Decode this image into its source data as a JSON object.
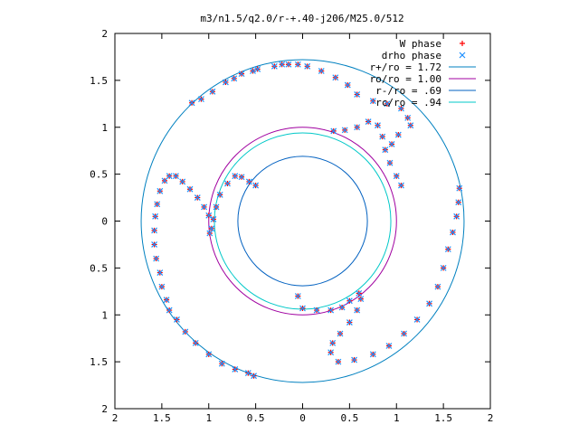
{
  "chart_data": {
    "type": "scatter",
    "title": "m3/n1.5/q2.0/r-+.40-j206/M25.0/512",
    "xlim": [
      -2,
      2
    ],
    "ylim": [
      -2,
      2
    ],
    "x_ticks": [
      -2,
      -1.5,
      -1,
      -0.5,
      0,
      0.5,
      1,
      1.5,
      2
    ],
    "y_ticks": [
      -2,
      -1.5,
      -1,
      -0.5,
      0,
      0.5,
      1,
      1.5,
      2
    ],
    "x_tick_labels": [
      "2",
      "1.5",
      "1",
      "0.5",
      "0",
      "0.5",
      "1",
      "1.5",
      "2"
    ],
    "y_tick_labels": [
      "2",
      "1.5",
      "1",
      "0.5",
      "0",
      "0.5",
      "1",
      "1.5",
      "2"
    ],
    "grid": false,
    "legend_position": "top-right",
    "series": [
      {
        "name": "W phase",
        "marker": "+",
        "color": "#ff0000",
        "points": [
          [
            -0.99,
            -0.13
          ],
          [
            -0.97,
            -0.08
          ],
          [
            -1.0,
            0.06
          ],
          [
            -1.05,
            0.15
          ],
          [
            -1.12,
            0.25
          ],
          [
            -1.2,
            0.34
          ],
          [
            -1.28,
            0.42
          ],
          [
            -1.35,
            0.48
          ],
          [
            -1.42,
            0.48
          ],
          [
            -1.47,
            0.43
          ],
          [
            -1.52,
            0.32
          ],
          [
            -1.55,
            0.18
          ],
          [
            -1.57,
            0.05
          ],
          [
            -1.58,
            -0.1
          ],
          [
            -1.58,
            -0.25
          ],
          [
            -1.56,
            -0.4
          ],
          [
            -1.52,
            -0.55
          ],
          [
            -1.5,
            -0.7
          ],
          [
            -1.45,
            -0.84
          ],
          [
            -1.42,
            -0.95
          ],
          [
            -1.34,
            -1.05
          ],
          [
            -1.25,
            -1.18
          ],
          [
            -1.14,
            -1.3
          ],
          [
            -1.0,
            -1.42
          ],
          [
            -0.86,
            -1.52
          ],
          [
            -0.72,
            -1.58
          ],
          [
            -0.58,
            -1.62
          ],
          [
            -0.52,
            -1.65
          ],
          [
            -0.95,
            0.02
          ],
          [
            -0.92,
            0.15
          ],
          [
            -0.88,
            0.28
          ],
          [
            -0.8,
            0.4
          ],
          [
            -0.72,
            0.48
          ],
          [
            -0.65,
            0.47
          ],
          [
            -0.57,
            0.42
          ],
          [
            -0.5,
            0.38
          ],
          [
            0.33,
            0.96
          ],
          [
            0.45,
            0.97
          ],
          [
            0.58,
            1.0
          ],
          [
            0.7,
            1.06
          ],
          [
            0.8,
            1.02
          ],
          [
            0.85,
            0.9
          ],
          [
            0.88,
            0.76
          ],
          [
            0.93,
            0.62
          ],
          [
            1.0,
            0.48
          ],
          [
            1.05,
            0.38
          ],
          [
            1.15,
            1.02
          ],
          [
            1.02,
            0.92
          ],
          [
            0.95,
            0.82
          ],
          [
            0.75,
            1.28
          ],
          [
            0.9,
            1.25
          ],
          [
            1.05,
            1.2
          ],
          [
            1.12,
            1.1
          ],
          [
            -0.05,
            1.67
          ],
          [
            -0.15,
            1.67
          ],
          [
            -0.3,
            1.65
          ],
          [
            -0.48,
            1.62
          ],
          [
            -0.65,
            1.57
          ],
          [
            -0.82,
            1.48
          ],
          [
            -0.96,
            1.38
          ],
          [
            -1.08,
            1.3
          ],
          [
            -1.18,
            1.26
          ],
          [
            0.05,
            1.65
          ],
          [
            0.2,
            1.6
          ],
          [
            0.35,
            1.53
          ],
          [
            0.48,
            1.45
          ],
          [
            0.58,
            1.35
          ],
          [
            1.67,
            0.35
          ],
          [
            1.66,
            0.2
          ],
          [
            1.64,
            0.05
          ],
          [
            1.6,
            -0.12
          ],
          [
            1.55,
            -0.3
          ],
          [
            1.5,
            -0.5
          ],
          [
            1.44,
            -0.7
          ],
          [
            1.35,
            -0.88
          ],
          [
            1.22,
            -1.05
          ],
          [
            1.08,
            -1.2
          ],
          [
            0.92,
            -1.33
          ],
          [
            0.75,
            -1.42
          ],
          [
            0.55,
            -1.48
          ],
          [
            0.38,
            -1.5
          ],
          [
            0.6,
            -0.77
          ],
          [
            0.62,
            -0.83
          ],
          [
            0.58,
            -0.95
          ],
          [
            0.5,
            -1.08
          ],
          [
            0.4,
            -1.2
          ],
          [
            0.32,
            -1.3
          ],
          [
            0.3,
            -1.4
          ],
          [
            0.5,
            -0.85
          ],
          [
            0.42,
            -0.92
          ],
          [
            0.3,
            -0.95
          ],
          [
            0.15,
            -0.95
          ],
          [
            0.0,
            -0.93
          ],
          [
            -0.05,
            -0.8
          ],
          [
            -0.22,
            1.67
          ],
          [
            -0.53,
            1.6
          ],
          [
            -0.73,
            1.52
          ]
        ]
      },
      {
        "name": "drho phase",
        "marker": "x",
        "color": "#1e90ff",
        "points": [
          [
            -0.99,
            -0.13
          ],
          [
            -0.97,
            -0.08
          ],
          [
            -1.0,
            0.06
          ],
          [
            -1.05,
            0.15
          ],
          [
            -1.12,
            0.25
          ],
          [
            -1.2,
            0.34
          ],
          [
            -1.28,
            0.42
          ],
          [
            -1.35,
            0.48
          ],
          [
            -1.42,
            0.48
          ],
          [
            -1.47,
            0.43
          ],
          [
            -1.52,
            0.32
          ],
          [
            -1.55,
            0.18
          ],
          [
            -1.57,
            0.05
          ],
          [
            -1.58,
            -0.1
          ],
          [
            -1.58,
            -0.25
          ],
          [
            -1.56,
            -0.4
          ],
          [
            -1.52,
            -0.55
          ],
          [
            -1.5,
            -0.7
          ],
          [
            -1.45,
            -0.84
          ],
          [
            -1.42,
            -0.95
          ],
          [
            -1.34,
            -1.05
          ],
          [
            -1.25,
            -1.18
          ],
          [
            -1.14,
            -1.3
          ],
          [
            -1.0,
            -1.42
          ],
          [
            -0.86,
            -1.52
          ],
          [
            -0.72,
            -1.58
          ],
          [
            -0.58,
            -1.62
          ],
          [
            -0.52,
            -1.65
          ],
          [
            -0.95,
            0.02
          ],
          [
            -0.92,
            0.15
          ],
          [
            -0.88,
            0.28
          ],
          [
            -0.8,
            0.4
          ],
          [
            -0.72,
            0.48
          ],
          [
            -0.65,
            0.47
          ],
          [
            -0.57,
            0.42
          ],
          [
            -0.5,
            0.38
          ],
          [
            0.33,
            0.96
          ],
          [
            0.45,
            0.97
          ],
          [
            0.58,
            1.0
          ],
          [
            0.7,
            1.06
          ],
          [
            0.8,
            1.02
          ],
          [
            0.85,
            0.9
          ],
          [
            0.88,
            0.76
          ],
          [
            0.93,
            0.62
          ],
          [
            1.0,
            0.48
          ],
          [
            1.05,
            0.38
          ],
          [
            1.15,
            1.02
          ],
          [
            1.02,
            0.92
          ],
          [
            0.95,
            0.82
          ],
          [
            0.75,
            1.28
          ],
          [
            0.9,
            1.25
          ],
          [
            1.05,
            1.2
          ],
          [
            1.12,
            1.1
          ],
          [
            -0.05,
            1.67
          ],
          [
            -0.15,
            1.67
          ],
          [
            -0.3,
            1.65
          ],
          [
            -0.48,
            1.62
          ],
          [
            -0.65,
            1.57
          ],
          [
            -0.82,
            1.48
          ],
          [
            -0.96,
            1.38
          ],
          [
            -1.08,
            1.3
          ],
          [
            -1.18,
            1.26
          ],
          [
            0.05,
            1.65
          ],
          [
            0.2,
            1.6
          ],
          [
            0.35,
            1.53
          ],
          [
            0.48,
            1.45
          ],
          [
            0.58,
            1.35
          ],
          [
            1.67,
            0.35
          ],
          [
            1.66,
            0.2
          ],
          [
            1.64,
            0.05
          ],
          [
            1.6,
            -0.12
          ],
          [
            1.55,
            -0.3
          ],
          [
            1.5,
            -0.5
          ],
          [
            1.44,
            -0.7
          ],
          [
            1.35,
            -0.88
          ],
          [
            1.22,
            -1.05
          ],
          [
            1.08,
            -1.2
          ],
          [
            0.92,
            -1.33
          ],
          [
            0.75,
            -1.42
          ],
          [
            0.55,
            -1.48
          ],
          [
            0.38,
            -1.5
          ],
          [
            0.6,
            -0.77
          ],
          [
            0.62,
            -0.83
          ],
          [
            0.58,
            -0.95
          ],
          [
            0.5,
            -1.08
          ],
          [
            0.4,
            -1.2
          ],
          [
            0.32,
            -1.3
          ],
          [
            0.3,
            -1.4
          ],
          [
            0.5,
            -0.85
          ],
          [
            0.42,
            -0.92
          ],
          [
            0.3,
            -0.95
          ],
          [
            0.15,
            -0.95
          ],
          [
            0.0,
            -0.93
          ],
          [
            -0.05,
            -0.8
          ],
          [
            -0.22,
            1.67
          ],
          [
            -0.53,
            1.6
          ],
          [
            -0.73,
            1.52
          ]
        ]
      }
    ],
    "circles": [
      {
        "name": "r+/ro = 1.72",
        "radius": 1.72,
        "color": "#0080c0"
      },
      {
        "name": "ro/ro = 1.00",
        "radius": 1.0,
        "color": "#a000a0"
      },
      {
        "name": "r-/ro = .69",
        "radius": 0.69,
        "color": "#0060c0"
      },
      {
        "name": "rc/ro = .94",
        "radius": 0.94,
        "color": "#00c8c8"
      }
    ]
  }
}
